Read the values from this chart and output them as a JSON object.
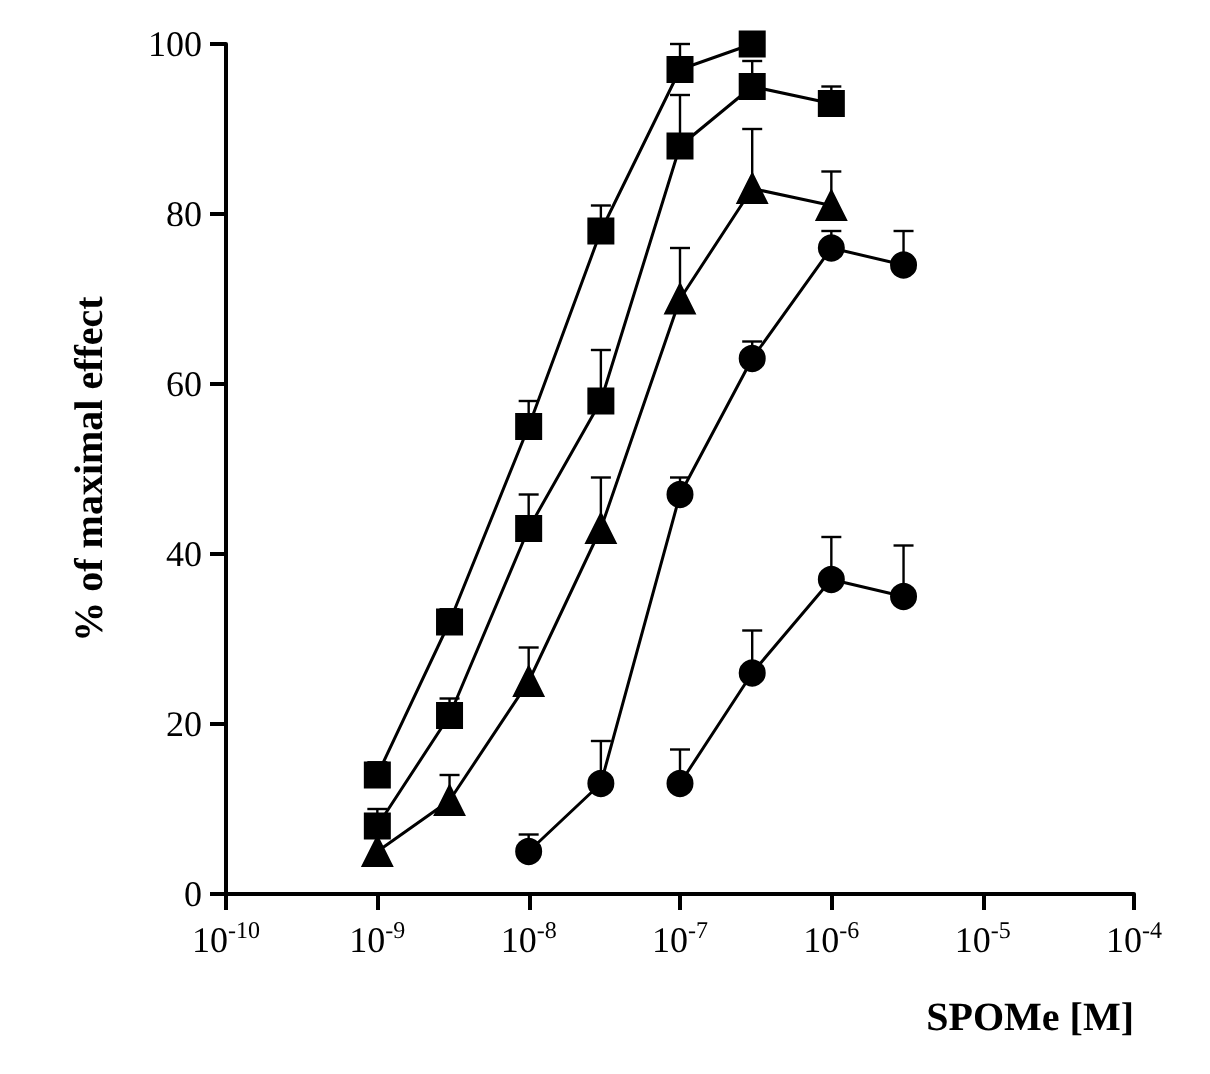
{
  "chart_data": {
    "type": "line",
    "xlabel": "SPOMe [M]",
    "ylabel": "% of maximal effect",
    "log": "x",
    "xlim": [
      1e-10,
      0.0001
    ],
    "xticks": [
      {
        "value": 1e-10,
        "label": "10$^{-10}$"
      },
      {
        "value": 1e-09,
        "label": "10$^{-9}$"
      },
      {
        "value": 1e-08,
        "label": "10$^{-8}$"
      },
      {
        "value": 1e-07,
        "label": "10$^{-7}$"
      },
      {
        "value": 1e-06,
        "label": "10$^{-6}$"
      },
      {
        "value": 1e-05,
        "label": "10$^{-5}$"
      },
      {
        "value": 0.0001,
        "label": "10$^{-4}$"
      }
    ],
    "ylim": [
      0,
      100
    ],
    "yticks": [
      0,
      20,
      40,
      60,
      80,
      100
    ],
    "grid": false,
    "line_style": "solid",
    "series": [
      {
        "color": "#000000",
        "marker": "square",
        "x": [
          1e-09,
          3e-09,
          1e-08,
          3e-08,
          1e-07,
          3e-07
        ],
        "values": [
          14,
          32,
          55,
          78,
          97,
          100
        ],
        "errors": [
          [
            14,
            15.5
          ],
          [
            32,
            33.5
          ],
          [
            55,
            58
          ],
          [
            78,
            81
          ],
          [
            97,
            100
          ],
          null
        ]
      },
      {
        "color": "#000000",
        "marker": "square",
        "x": [
          1e-09,
          3e-09,
          1e-08,
          3e-08,
          1e-07,
          3e-07,
          1e-06
        ],
        "values": [
          8,
          21,
          43,
          58,
          88,
          95,
          93
        ],
        "errors": [
          [
            8,
            10
          ],
          [
            21,
            23
          ],
          [
            43,
            47
          ],
          [
            58,
            64
          ],
          [
            88,
            94
          ],
          [
            95,
            98
          ],
          [
            93,
            95
          ]
        ]
      },
      {
        "color": "#000000",
        "marker": "triangle",
        "x": [
          1e-09,
          3e-09,
          1e-08,
          3e-08,
          1e-07,
          3e-07,
          1e-06
        ],
        "values": [
          5,
          11,
          25,
          43,
          70,
          83,
          81
        ],
        "errors": [
          null,
          [
            11,
            14
          ],
          [
            25,
            29
          ],
          [
            43,
            49
          ],
          [
            70,
            76
          ],
          [
            83,
            90
          ],
          [
            81,
            85
          ]
        ]
      },
      {
        "color": "#000000",
        "marker": "circle",
        "x": [
          1e-08,
          3e-08,
          1e-07,
          3e-07,
          1e-06,
          3e-06
        ],
        "values": [
          5,
          13,
          47,
          63,
          76,
          74
        ],
        "errors": [
          [
            5,
            7
          ],
          [
            13,
            18
          ],
          [
            47,
            49
          ],
          [
            63,
            65
          ],
          [
            76,
            78
          ],
          [
            74,
            78
          ]
        ]
      },
      {
        "color": "#000000",
        "marker": "circle",
        "x": [
          1e-07,
          3e-07,
          1e-06,
          3e-06
        ],
        "values": [
          13,
          26,
          37,
          35
        ],
        "errors": [
          [
            13,
            17
          ],
          [
            26,
            31
          ],
          [
            37,
            42
          ],
          [
            35,
            41
          ]
        ]
      }
    ]
  }
}
